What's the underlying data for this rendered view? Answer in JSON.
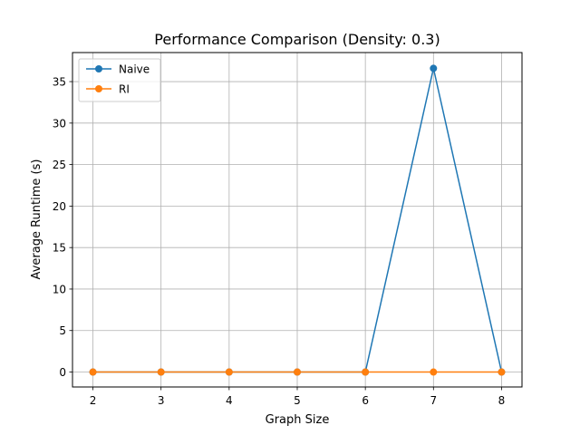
{
  "chart_data": {
    "type": "line",
    "title": "Performance Comparison (Density: 0.3)",
    "xlabel": "Graph Size",
    "ylabel": "Average Runtime (s)",
    "x": [
      2,
      3,
      4,
      5,
      6,
      7,
      8
    ],
    "xticks": [
      2,
      3,
      4,
      5,
      6,
      7,
      8
    ],
    "yticks": [
      0,
      5,
      10,
      15,
      20,
      25,
      30,
      35
    ],
    "xlim": [
      1.7,
      8.3
    ],
    "ylim": [
      -1.8,
      38.5
    ],
    "grid": true,
    "legend_position": "upper-left",
    "series": [
      {
        "name": "Naive",
        "color": "#1f77b4",
        "values": [
          0.0,
          0.0,
          0.0,
          0.0,
          0.0,
          36.6,
          0.0
        ]
      },
      {
        "name": "RI",
        "color": "#ff7f0e",
        "values": [
          0.0,
          0.0,
          0.0,
          0.0,
          0.0,
          0.0,
          0.0
        ]
      }
    ]
  }
}
